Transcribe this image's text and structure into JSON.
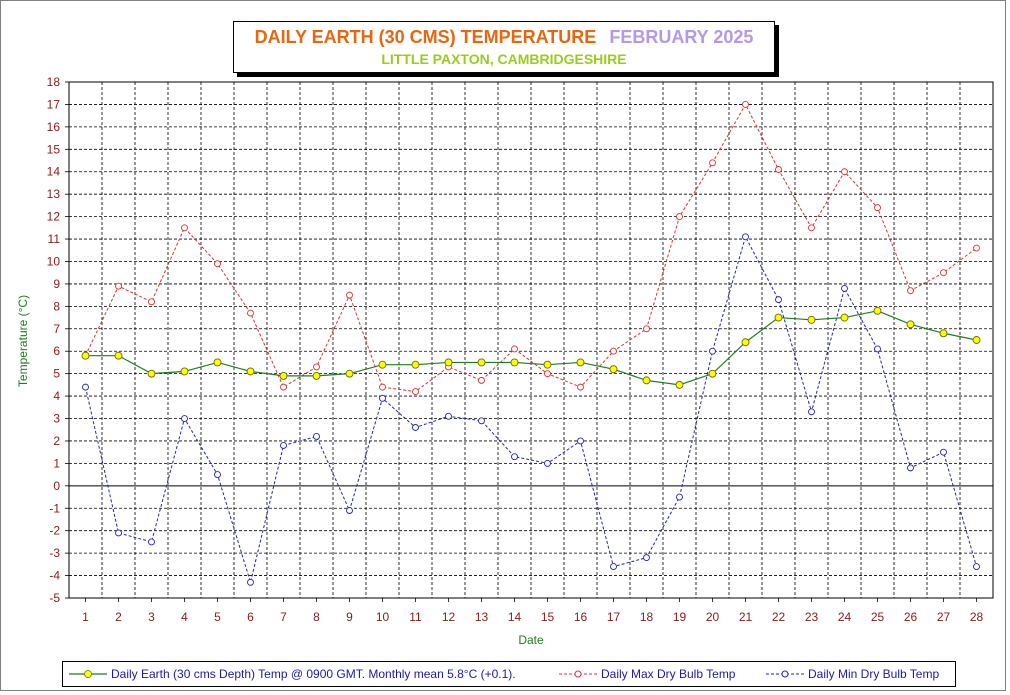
{
  "title": {
    "main": "DAILY EARTH (30 CMS) TEMPERATURE",
    "month": "FEBRUARY 2025",
    "subtitle": "LITTLE PAXTON, CAMBRIDGESHIRE"
  },
  "colors": {
    "title_main": "#e8660e",
    "title_month": "#b399e6",
    "subtitle": "#9acd1a",
    "earth": "#1e7d1e",
    "earth_marker": "#ffff00",
    "max": "#e03030",
    "min": "#2020c8",
    "tick_label": "#8b1a1a",
    "axis_title": "#1e7d1e"
  },
  "chart_data": {
    "type": "line",
    "xlabel": "Date",
    "ylabel": "Temperature (°C)",
    "ylim": [
      -5,
      18
    ],
    "y_ticks": [
      -5,
      -4,
      -3,
      -2,
      -1,
      0,
      1,
      2,
      3,
      4,
      5,
      6,
      7,
      8,
      9,
      10,
      11,
      12,
      13,
      14,
      15,
      16,
      17,
      18
    ],
    "x": [
      1,
      2,
      3,
      4,
      5,
      6,
      7,
      8,
      9,
      10,
      11,
      12,
      13,
      14,
      15,
      16,
      17,
      18,
      19,
      20,
      21,
      22,
      23,
      24,
      25,
      26,
      27,
      28
    ],
    "grid": true,
    "legend_position": "bottom",
    "series": [
      {
        "name": "Daily Earth (30 cms Depth) Temp @ 0900 GMT. Monthly mean 5.8°C (+0.1).",
        "style": "solid",
        "values": [
          5.8,
          5.8,
          5.0,
          5.1,
          5.5,
          5.1,
          4.9,
          4.9,
          5.0,
          5.4,
          5.4,
          5.5,
          5.5,
          5.5,
          5.4,
          5.5,
          5.2,
          4.7,
          4.5,
          5.0,
          6.4,
          7.5,
          7.4,
          7.5,
          7.8,
          7.2,
          6.8,
          6.5
        ]
      },
      {
        "name": "Daily Max Dry Bulb Temp",
        "style": "dashed",
        "values": [
          5.8,
          8.9,
          8.2,
          11.5,
          9.9,
          7.7,
          4.4,
          5.3,
          8.5,
          4.4,
          4.2,
          5.3,
          4.7,
          6.1,
          5.0,
          4.4,
          6.0,
          7.0,
          12.0,
          14.4,
          17.0,
          14.1,
          11.5,
          14.0,
          12.4,
          8.7,
          9.5,
          10.6
        ]
      },
      {
        "name": "Daily Min Dry Bulb Temp",
        "style": "dashed",
        "values": [
          4.4,
          -2.1,
          -2.5,
          3.0,
          0.5,
          -4.3,
          1.8,
          2.2,
          -1.1,
          3.9,
          2.6,
          3.1,
          2.9,
          1.3,
          1.0,
          2.0,
          -3.6,
          -3.2,
          -0.5,
          6.0,
          11.1,
          8.3,
          3.3,
          8.8,
          6.1,
          0.8,
          1.5,
          -3.6
        ]
      }
    ]
  }
}
